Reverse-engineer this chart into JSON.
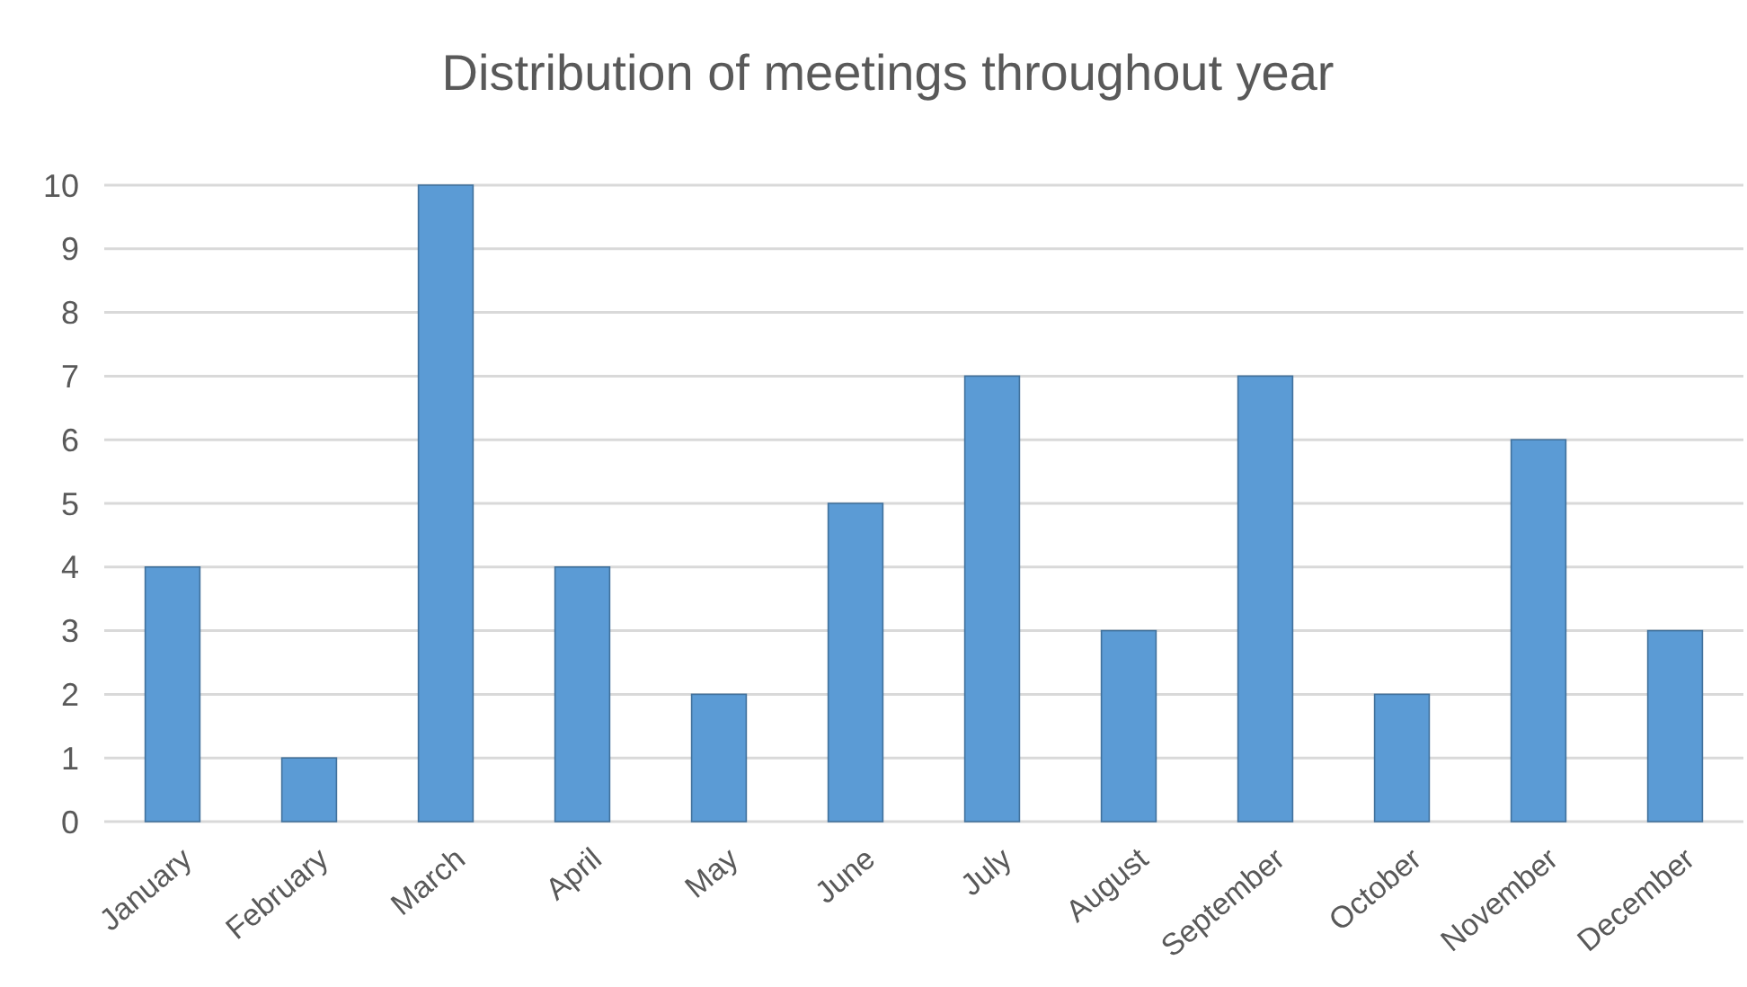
{
  "chart_data": {
    "type": "bar",
    "title": "Distribution of meetings throughout year",
    "categories": [
      "January",
      "February",
      "March",
      "April",
      "May",
      "June",
      "July",
      "August",
      "September",
      "October",
      "November",
      "December"
    ],
    "values": [
      4,
      1,
      10,
      4,
      2,
      5,
      7,
      3,
      7,
      2,
      6,
      3
    ],
    "color": "#5b9bd5",
    "ylim": [
      0,
      10
    ],
    "yticks": [
      0,
      1,
      2,
      3,
      4,
      5,
      6,
      7,
      8,
      9,
      10
    ],
    "grid": "y"
  }
}
